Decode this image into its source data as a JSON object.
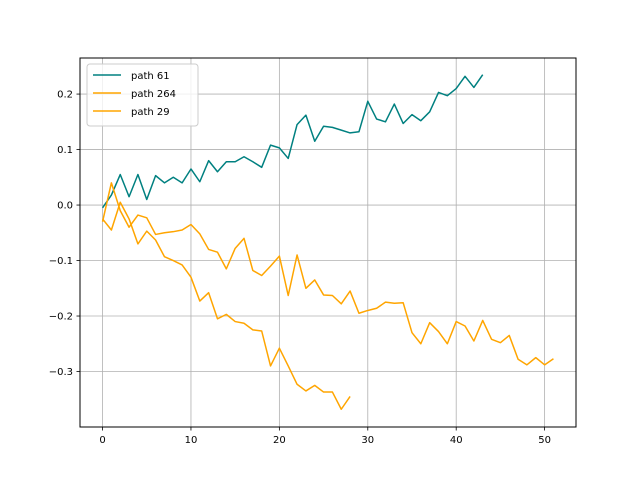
{
  "chart_data": {
    "type": "line",
    "title": "",
    "xlabel": "",
    "ylabel": "",
    "xlim": [
      -2.55,
      53.55
    ],
    "ylim": [
      -0.4,
      0.265
    ],
    "xticks": [
      0,
      10,
      20,
      30,
      40,
      50
    ],
    "yticks": [
      -0.3,
      -0.2,
      -0.1,
      0.0,
      0.1,
      0.2
    ],
    "xtick_labels": [
      "0",
      "10",
      "20",
      "30",
      "40",
      "50"
    ],
    "ytick_labels": [
      "−0.3",
      "−0.2",
      "−0.1",
      "0.0",
      "0.1",
      "0.2"
    ],
    "grid": true,
    "legend_position": "upper-left",
    "series": [
      {
        "name": "path 61",
        "color": "#008080",
        "y": [
          -0.005,
          0.018,
          0.055,
          0.015,
          0.055,
          0.01,
          0.053,
          0.04,
          0.05,
          0.04,
          0.065,
          0.042,
          0.08,
          0.06,
          0.078,
          0.078,
          0.087,
          0.078,
          0.068,
          0.108,
          0.103,
          0.084,
          0.145,
          0.162,
          0.115,
          0.142,
          0.14,
          0.135,
          0.13,
          0.132,
          0.187,
          0.155,
          0.15,
          0.182,
          0.147,
          0.163,
          0.152,
          0.168,
          0.203,
          0.197,
          0.21,
          0.232,
          0.212,
          0.235
        ]
      },
      {
        "name": "path 264",
        "color": "#FFA500",
        "y": [
          -0.025,
          -0.045,
          0.005,
          -0.025,
          -0.07,
          -0.047,
          -0.063,
          -0.093,
          -0.1,
          -0.108,
          -0.13,
          -0.173,
          -0.158,
          -0.205,
          -0.197,
          -0.21,
          -0.213,
          -0.225,
          -0.227,
          -0.29,
          -0.258,
          -0.29,
          -0.323,
          -0.335,
          -0.325,
          -0.337,
          -0.337,
          -0.368,
          -0.345
        ]
      },
      {
        "name": "path 29",
        "color": "#FFA500",
        "y": [
          -0.03,
          0.04,
          -0.01,
          -0.04,
          -0.018,
          -0.023,
          -0.053,
          -0.05,
          -0.048,
          -0.045,
          -0.035,
          -0.052,
          -0.08,
          -0.085,
          -0.115,
          -0.078,
          -0.06,
          -0.118,
          -0.127,
          -0.11,
          -0.092,
          -0.163,
          -0.09,
          -0.15,
          -0.135,
          -0.162,
          -0.163,
          -0.178,
          -0.155,
          -0.195,
          -0.19,
          -0.186,
          -0.175,
          -0.177,
          -0.176,
          -0.23,
          -0.25,
          -0.212,
          -0.228,
          -0.25,
          -0.21,
          -0.218,
          -0.245,
          -0.208,
          -0.242,
          -0.248,
          -0.235,
          -0.278,
          -0.288,
          -0.275,
          -0.288,
          -0.277
        ]
      }
    ]
  }
}
